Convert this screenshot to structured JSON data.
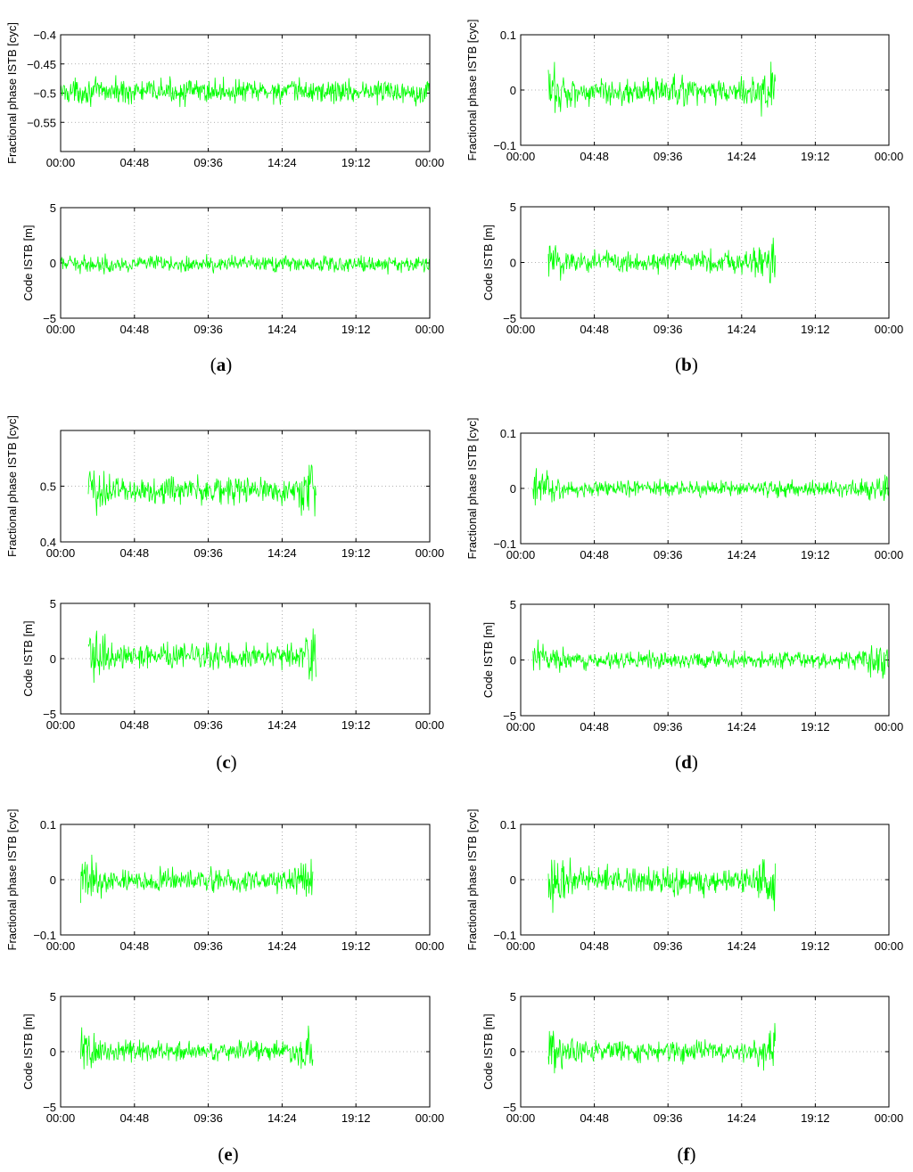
{
  "x_tick_labels": [
    "00:00",
    "04:48",
    "09:36",
    "14:24",
    "19:12",
    "00:00"
  ],
  "phase_ylabel": "Fractional phase ISTB [cyc]",
  "code_ylabel": "Code ISTB [m]",
  "code_y_tick_labels": [
    "5",
    "0",
    "−5"
  ],
  "panel_labels": {
    "a": {
      "open": "(",
      "letter": "a",
      "close": ")"
    },
    "b": {
      "open": "(",
      "letter": "b",
      "close": ")"
    },
    "c": {
      "open": "(",
      "letter": "c",
      "close": ")"
    },
    "d": {
      "open": "(",
      "letter": "d",
      "close": ")"
    },
    "e": {
      "open": "(",
      "letter": "e",
      "close": ")"
    },
    "f": {
      "open": "(",
      "letter": "f",
      "close": ")"
    }
  },
  "series_color": "#00ff00",
  "chart_data": [
    {
      "panel": "a",
      "kind": "phase",
      "type": "line",
      "ylabel": "Fractional phase ISTB [cyc]",
      "xlim_hours": [
        0,
        24
      ],
      "ylim": [
        -0.6,
        -0.4
      ],
      "yticks": [
        -0.4,
        -0.45,
        -0.5,
        -0.55
      ],
      "ytick_labels": [
        "−0.4",
        "−0.45",
        "−0.5",
        "−0.55"
      ],
      "data_span_hours": [
        0,
        24
      ],
      "mean": -0.497,
      "noise_amplitude": 0.01,
      "grid": true
    },
    {
      "panel": "a",
      "kind": "code",
      "type": "line",
      "ylabel": "Code ISTB [m]",
      "xlim_hours": [
        0,
        24
      ],
      "ylim": [
        -5,
        5
      ],
      "yticks": [
        5,
        0,
        -5
      ],
      "data_span_hours": [
        0,
        24
      ],
      "mean": -0.1,
      "noise_amplitude": 0.35,
      "grid": true
    },
    {
      "panel": "b",
      "kind": "phase",
      "type": "line",
      "ylabel": "Fractional phase ISTB [cyc]",
      "xlim_hours": [
        0,
        24
      ],
      "ylim": [
        -0.1,
        0.1
      ],
      "yticks": [
        0.1,
        0,
        -0.1
      ],
      "ytick_labels": [
        "0.1",
        "0",
        "−0.1"
      ],
      "data_span_hours": [
        1.8,
        16.6
      ],
      "mean": -0.003,
      "noise_amplitude": 0.012,
      "grid": true
    },
    {
      "panel": "b",
      "kind": "code",
      "type": "line",
      "ylabel": "Code ISTB [m]",
      "xlim_hours": [
        0,
        24
      ],
      "ylim": [
        -5,
        5
      ],
      "yticks": [
        5,
        0,
        -5
      ],
      "data_span_hours": [
        1.8,
        16.6
      ],
      "mean": 0.1,
      "noise_amplitude": 0.5,
      "grid": true
    },
    {
      "panel": "c",
      "kind": "phase",
      "type": "line",
      "ylabel": "Fractional phase ISTB [cyc]",
      "xlim_hours": [
        0,
        24
      ],
      "ylim": [
        0.4,
        0.6
      ],
      "yticks": [
        0.5,
        0.4
      ],
      "ytick_labels": [
        "0.5",
        "0.4"
      ],
      "data_span_hours": [
        1.8,
        16.6
      ],
      "mean": 0.493,
      "noise_amplitude": 0.012,
      "grid": true
    },
    {
      "panel": "c",
      "kind": "code",
      "type": "line",
      "ylabel": "Code ISTB [m]",
      "xlim_hours": [
        0,
        24
      ],
      "ylim": [
        -5,
        5
      ],
      "yticks": [
        5,
        0,
        -5
      ],
      "data_span_hours": [
        1.8,
        16.6
      ],
      "mean": 0.25,
      "noise_amplitude": 0.55,
      "grid": true
    },
    {
      "panel": "d",
      "kind": "phase",
      "type": "line",
      "ylabel": "Fractional phase ISTB [cyc]",
      "xlim_hours": [
        0,
        24
      ],
      "ylim": [
        -0.1,
        0.1
      ],
      "yticks": [
        0.1,
        0,
        -0.1
      ],
      "ytick_labels": [
        "0.1",
        "0",
        "−0.1"
      ],
      "data_span_hours": [
        0.8,
        24
      ],
      "mean": 0.0,
      "noise_amplitude": 0.007,
      "grid": true
    },
    {
      "panel": "d",
      "kind": "code",
      "type": "line",
      "ylabel": "Code ISTB [m]",
      "xlim_hours": [
        0,
        24
      ],
      "ylim": [
        -5,
        5
      ],
      "yticks": [
        5,
        0,
        -5
      ],
      "data_span_hours": [
        0.8,
        24
      ],
      "mean": 0.0,
      "noise_amplitude": 0.35,
      "grid": true
    },
    {
      "panel": "e",
      "kind": "phase",
      "type": "line",
      "ylabel": "Fractional phase ISTB [cyc]",
      "xlim_hours": [
        0,
        24
      ],
      "ylim": [
        -0.1,
        0.1
      ],
      "yticks": [
        0.1,
        0,
        -0.1
      ],
      "ytick_labels": [
        "0.1",
        "0",
        "−0.1"
      ],
      "data_span_hours": [
        1.3,
        16.4
      ],
      "mean": -0.002,
      "noise_amplitude": 0.01,
      "grid": true
    },
    {
      "panel": "e",
      "kind": "code",
      "type": "line",
      "ylabel": "Code ISTB [m]",
      "xlim_hours": [
        0,
        24
      ],
      "ylim": [
        -5,
        5
      ],
      "yticks": [
        5,
        0,
        -5
      ],
      "data_span_hours": [
        1.3,
        16.4
      ],
      "mean": 0.05,
      "noise_amplitude": 0.45,
      "grid": true
    },
    {
      "panel": "f",
      "kind": "phase",
      "type": "line",
      "ylabel": "Fractional phase ISTB [cyc]",
      "xlim_hours": [
        0,
        24
      ],
      "ylim": [
        -0.1,
        0.1
      ],
      "yticks": [
        0.1,
        0,
        -0.1
      ],
      "ytick_labels": [
        "0.1",
        "0",
        "−0.1"
      ],
      "data_span_hours": [
        1.8,
        16.6
      ],
      "mean": 0.0,
      "noise_amplitude": 0.012,
      "grid": true
    },
    {
      "panel": "f",
      "kind": "code",
      "type": "line",
      "ylabel": "Code ISTB [m]",
      "xlim_hours": [
        0,
        24
      ],
      "ylim": [
        -5,
        5
      ],
      "yticks": [
        5,
        0,
        -5
      ],
      "data_span_hours": [
        1.8,
        16.6
      ],
      "mean": 0.05,
      "noise_amplitude": 0.45,
      "grid": true
    }
  ]
}
